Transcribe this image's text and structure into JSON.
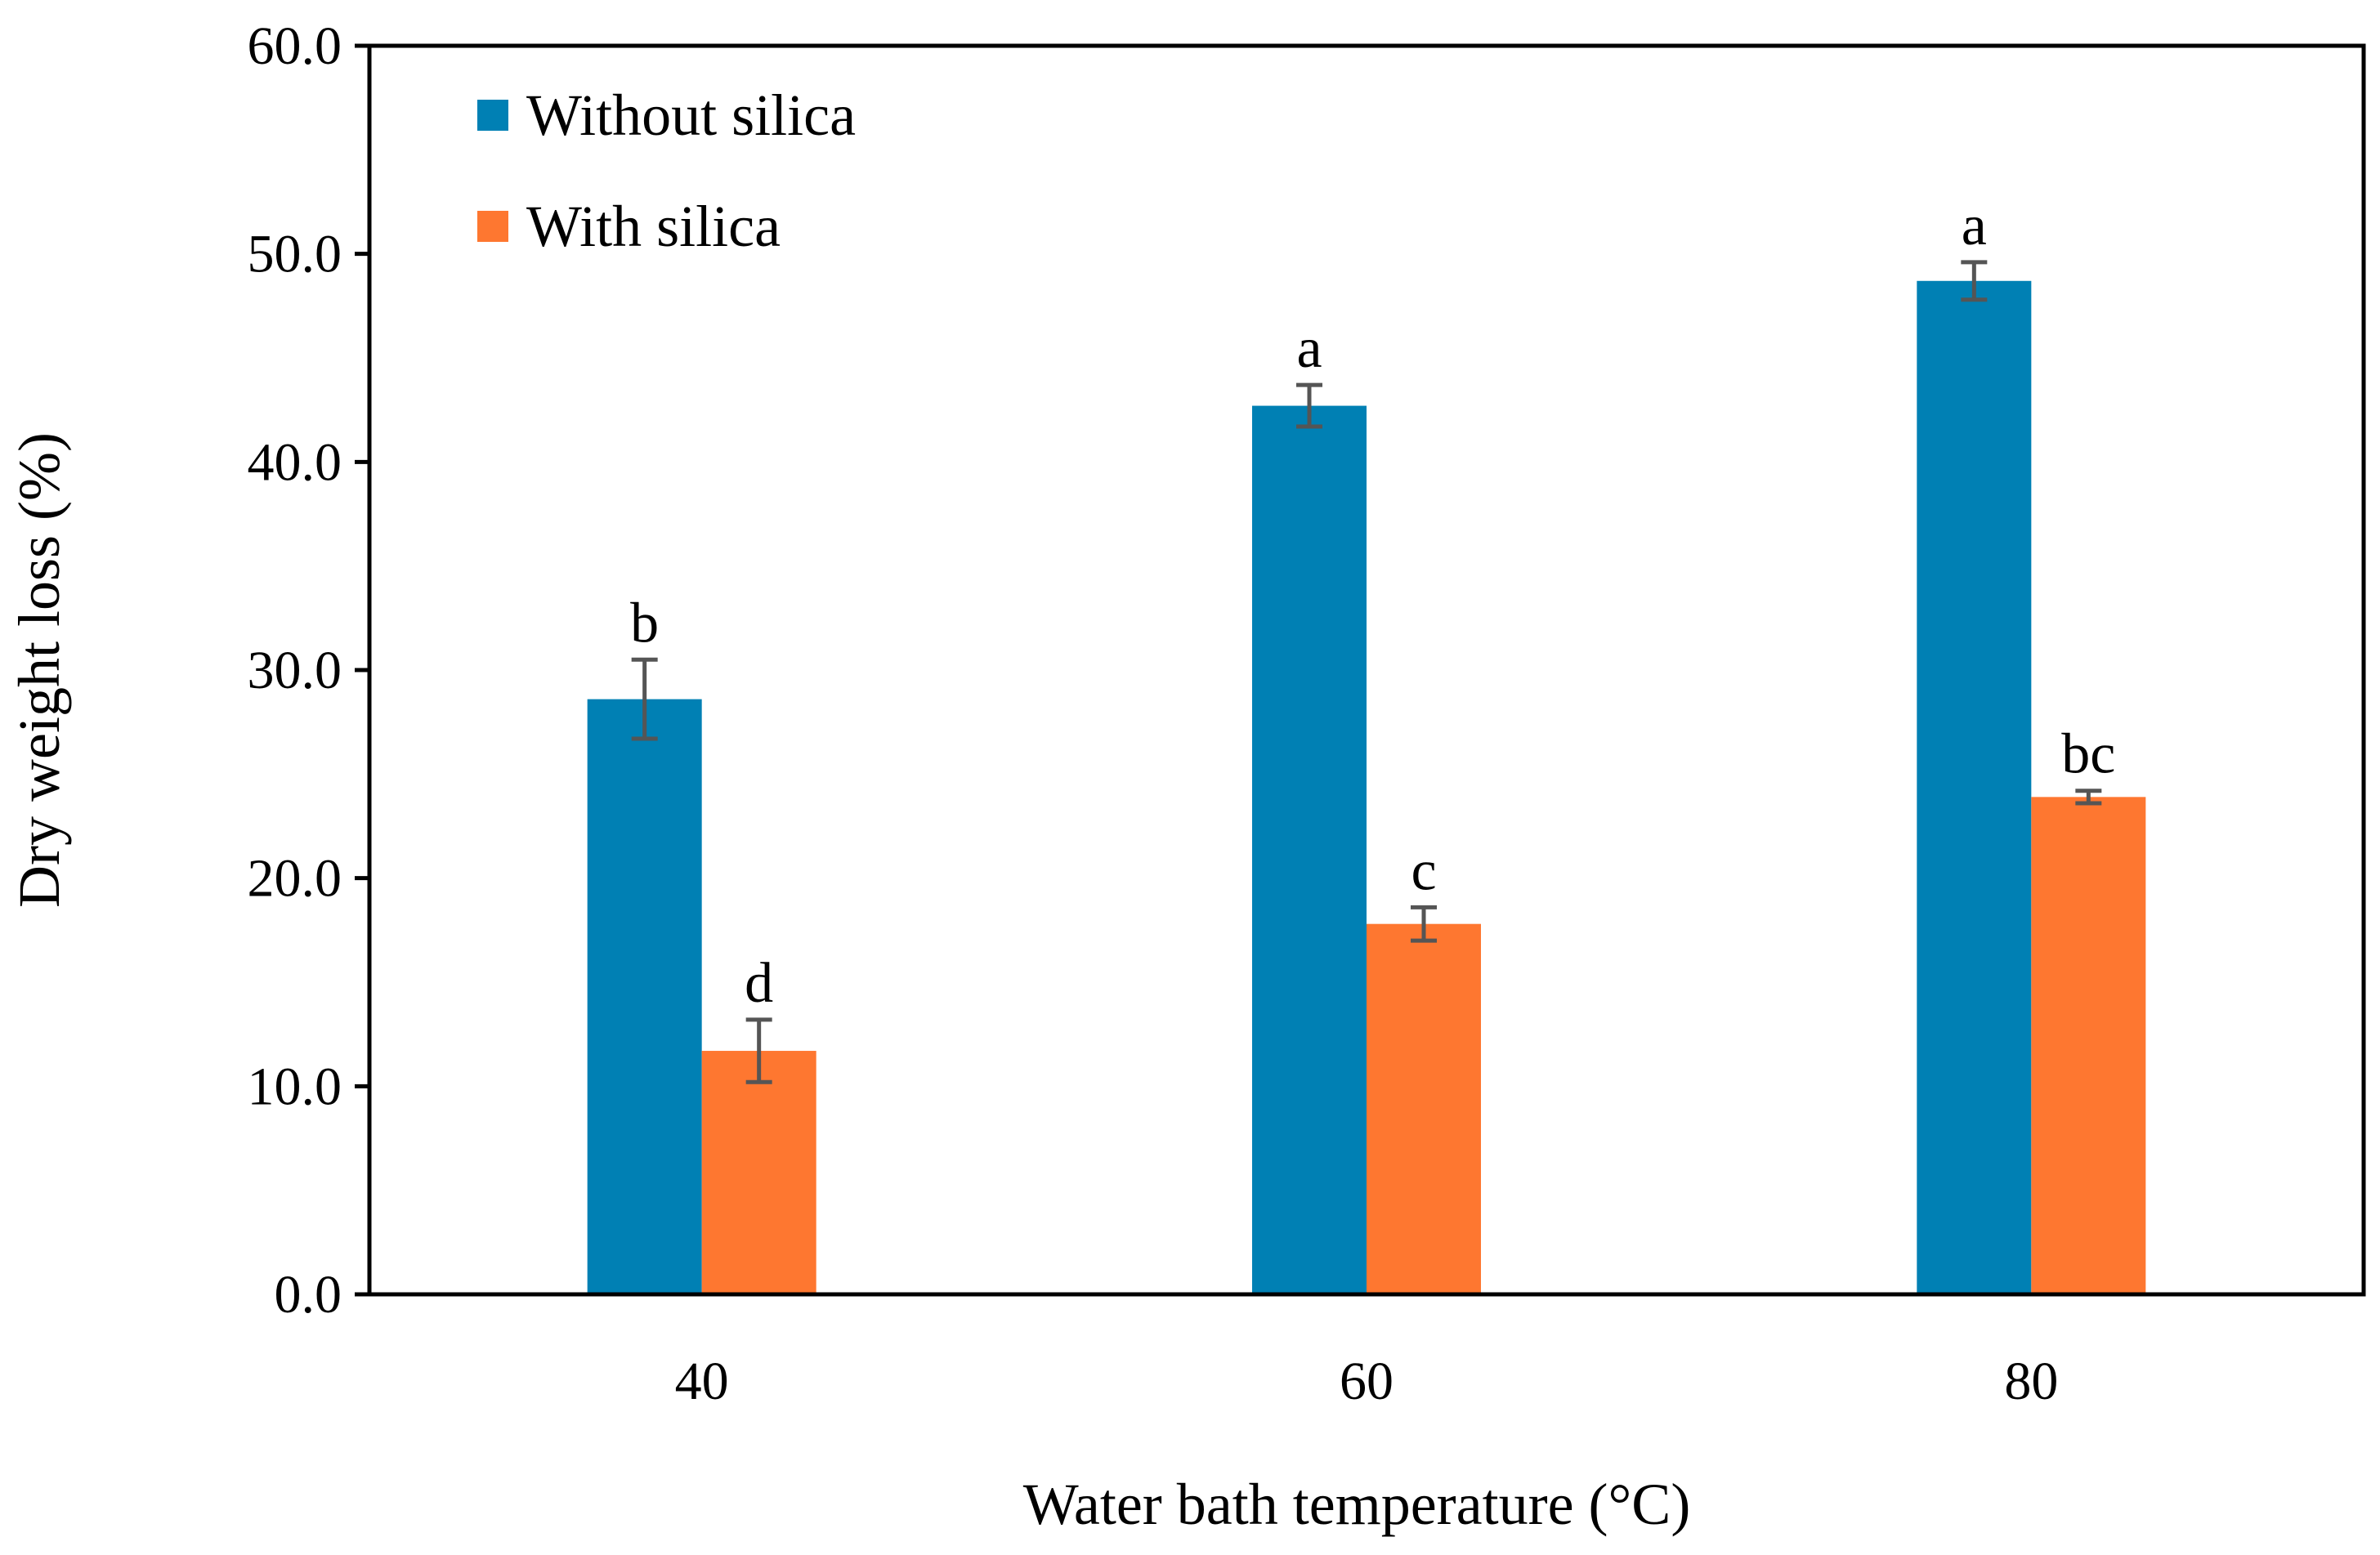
{
  "chart_data": {
    "type": "bar",
    "title": "",
    "xlabel": "Water bath temperature (°C)",
    "ylabel": "Dry weight loss (%)",
    "categories": [
      "40",
      "60",
      "80"
    ],
    "ylim": [
      0,
      60
    ],
    "yticks": [
      "0.0",
      "10.0",
      "20.0",
      "30.0",
      "40.0",
      "50.0",
      "60.0"
    ],
    "grid": false,
    "legend_position": "top-left",
    "series": [
      {
        "name": "Without silica",
        "color": "#0080b4",
        "values": [
          28.6,
          42.7,
          48.7
        ],
        "errors": [
          1.9,
          1.0,
          0.9
        ],
        "labels": [
          "b",
          "a",
          "a"
        ]
      },
      {
        "name": "With silica",
        "color": "#fe7730",
        "values": [
          11.7,
          17.8,
          23.9
        ],
        "errors": [
          1.5,
          0.8,
          0.3
        ],
        "labels": [
          "d",
          "c",
          "bc"
        ]
      }
    ]
  }
}
